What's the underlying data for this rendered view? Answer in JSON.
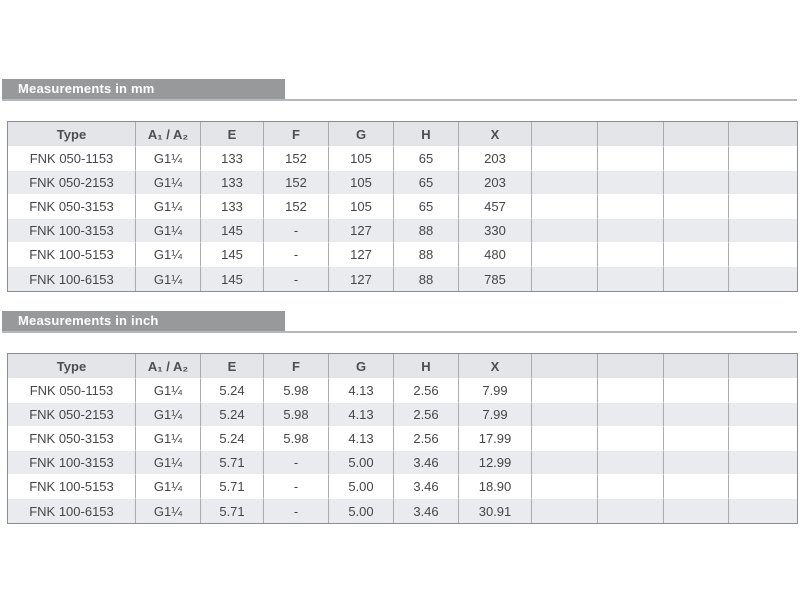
{
  "colors": {
    "title_bar_bg": "#98999b",
    "title_bar_text": "#ffffff",
    "title_underline": "#b5b7b9",
    "table_outer_border": "#8b8d90",
    "cell_divider": "#a9abad",
    "header_row_bg": "#e3e5e8",
    "row_bg": "#ffffff",
    "row_alt_bg": "#e9ebee",
    "cell_text": "#464648"
  },
  "tables": [
    {
      "id": "measurements-mm",
      "title": "Measurements in mm",
      "columns": [
        "Type",
        "A₁ / A₂",
        "E",
        "F",
        "G",
        "H",
        "X",
        "",
        "",
        "",
        ""
      ],
      "rows": [
        [
          "FNK 050-1153",
          "G1¼",
          "133",
          "152",
          "105",
          "65",
          "203",
          "",
          "",
          "",
          ""
        ],
        [
          "FNK 050-2153",
          "G1¼",
          "133",
          "152",
          "105",
          "65",
          "203",
          "",
          "",
          "",
          ""
        ],
        [
          "FNK 050-3153",
          "G1¼",
          "133",
          "152",
          "105",
          "65",
          "457",
          "",
          "",
          "",
          ""
        ],
        [
          "FNK 100-3153",
          "G1¼",
          "145",
          "-",
          "127",
          "88",
          "330",
          "",
          "",
          "",
          ""
        ],
        [
          "FNK 100-5153",
          "G1¼",
          "145",
          "-",
          "127",
          "88",
          "480",
          "",
          "",
          "",
          ""
        ],
        [
          "FNK 100-6153",
          "G1¼",
          "145",
          "-",
          "127",
          "88",
          "785",
          "",
          "",
          "",
          ""
        ]
      ]
    },
    {
      "id": "measurements-inch",
      "title": "Measurements in inch",
      "columns": [
        "Type",
        "A₁ / A₂",
        "E",
        "F",
        "G",
        "H",
        "X",
        "",
        "",
        "",
        ""
      ],
      "rows": [
        [
          "FNK 050-1153",
          "G1¼",
          "5.24",
          "5.98",
          "4.13",
          "2.56",
          "7.99",
          "",
          "",
          "",
          ""
        ],
        [
          "FNK 050-2153",
          "G1¼",
          "5.24",
          "5.98",
          "4.13",
          "2.56",
          "7.99",
          "",
          "",
          "",
          ""
        ],
        [
          "FNK 050-3153",
          "G1¼",
          "5.24",
          "5.98",
          "4.13",
          "2.56",
          "17.99",
          "",
          "",
          "",
          ""
        ],
        [
          "FNK 100-3153",
          "G1¼",
          "5.71",
          "-",
          "5.00",
          "3.46",
          "12.99",
          "",
          "",
          "",
          ""
        ],
        [
          "FNK 100-5153",
          "G1¼",
          "5.71",
          "-",
          "5.00",
          "3.46",
          "18.90",
          "",
          "",
          "",
          ""
        ],
        [
          "FNK 100-6153",
          "G1¼",
          "5.71",
          "-",
          "5.00",
          "3.46",
          "30.91",
          "",
          "",
          "",
          ""
        ]
      ]
    }
  ]
}
